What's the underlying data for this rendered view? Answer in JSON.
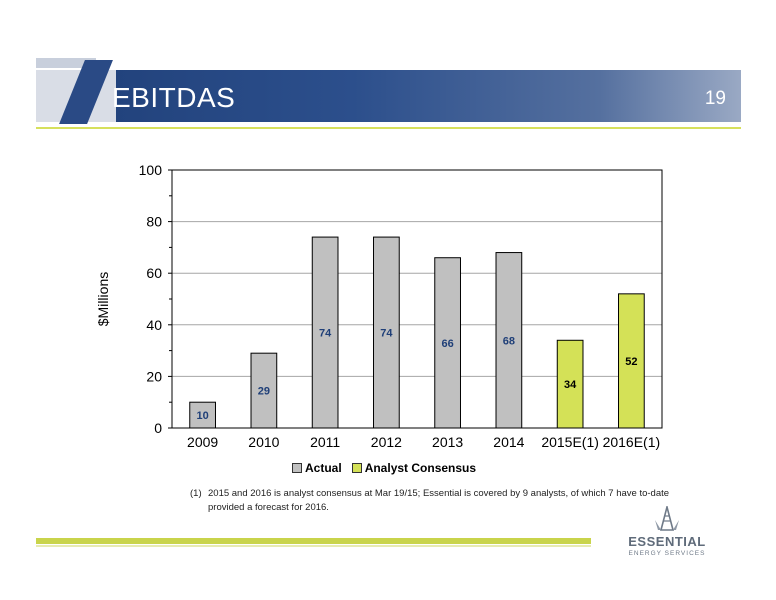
{
  "header": {
    "title": "EBITDAS",
    "page_number": "19"
  },
  "chart_data": {
    "type": "bar",
    "title": "",
    "xlabel": "",
    "ylabel": "$Millions",
    "ylim": [
      0,
      100
    ],
    "yticks": [
      0,
      20,
      40,
      60,
      80,
      100
    ],
    "grid": true,
    "legend_position": "bottom",
    "categories": [
      "2009",
      "2010",
      "2011",
      "2012",
      "2013",
      "2014",
      "2015E(1)",
      "2016E(1)"
    ],
    "series": [
      {
        "name": "Actual",
        "color": "#c0c0c0",
        "label_color": "#1f3f78",
        "values": [
          10,
          29,
          74,
          74,
          66,
          68,
          null,
          null
        ]
      },
      {
        "name": "Analyst Consensus",
        "color": "#d4e157",
        "label_color": "#000000",
        "values": [
          null,
          null,
          null,
          null,
          null,
          null,
          34,
          52
        ]
      }
    ]
  },
  "footnote": {
    "marker": "(1)",
    "text": "2015 and 2016 is analyst consensus at Mar 19/15; Essential is covered by 9 analysts, of which 7 have to-date provided a forecast for 2016."
  },
  "logo": {
    "name": "ESSENTIAL",
    "tagline": "ENERGY SERVICES"
  }
}
